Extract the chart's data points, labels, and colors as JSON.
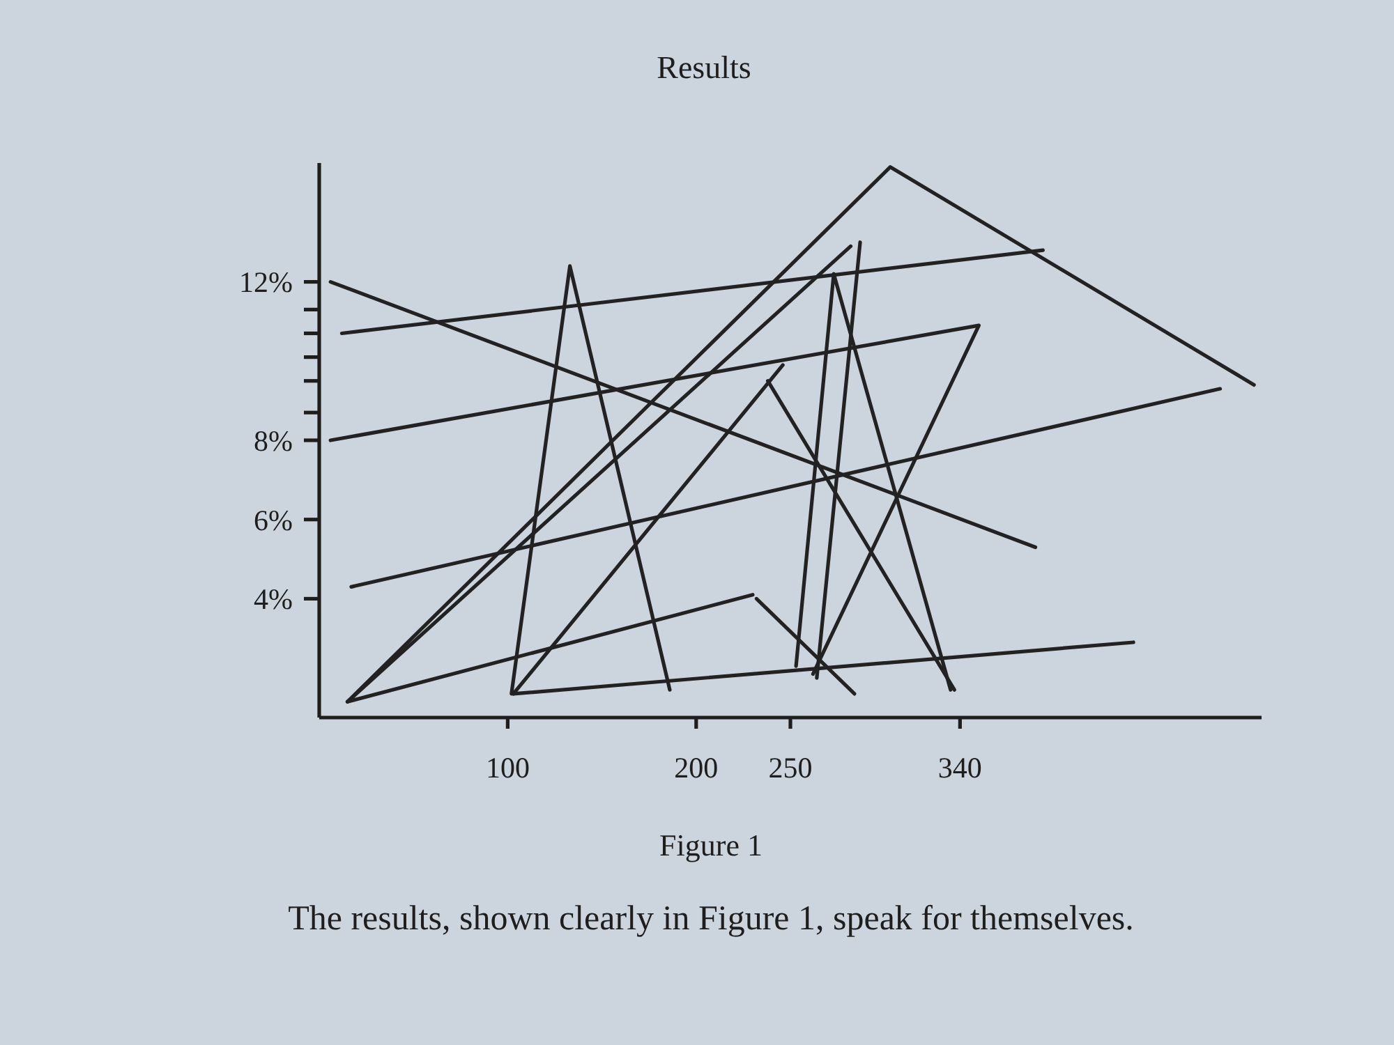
{
  "chart_data": {
    "type": "line",
    "title": "Results",
    "annotations": [
      "Figure 1",
      "The results, shown clearly in Figure 1, speak for themselves."
    ],
    "xlim": [
      0,
      500
    ],
    "xticks": [
      100,
      200,
      250,
      340
    ],
    "ylim": [
      1,
      15
    ],
    "yticks": [
      {
        "value": 4,
        "label": "4%"
      },
      {
        "value": 6,
        "label": "6%"
      },
      {
        "value": 8,
        "label": "8%"
      },
      {
        "value": 8.7,
        "label": null
      },
      {
        "value": 9.5,
        "label": null
      },
      {
        "value": 10.1,
        "label": null
      },
      {
        "value": 10.7,
        "label": null
      },
      {
        "value": 11.3,
        "label": null
      },
      {
        "value": 12,
        "label": "12%"
      }
    ],
    "marker": "none",
    "line_style": "solid",
    "series": [
      {
        "color": "#222222",
        "x": [
          6,
          380
        ],
        "values": [
          12,
          5.3
        ]
      },
      {
        "color": "#222222",
        "x": [
          12,
          384
        ],
        "values": [
          10.7,
          12.8
        ]
      },
      {
        "color": "#222222",
        "x": [
          6,
          350,
          262
        ],
        "values": [
          8,
          10.9,
          2.1
        ]
      },
      {
        "color": "#222222",
        "x": [
          17,
          478
        ],
        "values": [
          4.3,
          9.3
        ]
      },
      {
        "color": "#222222",
        "x": [
          103,
          432
        ],
        "values": [
          1.6,
          2.9
        ]
      },
      {
        "color": "#222222",
        "x": [
          15,
          230
        ],
        "values": [
          1.4,
          4.1
        ]
      },
      {
        "color": "#222222",
        "x": [
          15,
          303,
          496
        ],
        "values": [
          1.4,
          14.9,
          9.4
        ]
      },
      {
        "color": "#222222",
        "x": [
          15,
          282
        ],
        "values": [
          1.4,
          12.9
        ]
      },
      {
        "color": "#222222",
        "x": [
          102,
          133,
          186
        ],
        "values": [
          1.6,
          12.4,
          1.7
        ]
      },
      {
        "color": "#222222",
        "x": [
          103,
          246
        ],
        "values": [
          1.6,
          9.9
        ]
      },
      {
        "color": "#222222",
        "x": [
          238,
          337
        ],
        "values": [
          9.5,
          1.7
        ]
      },
      {
        "color": "#222222",
        "x": [
          253,
          273,
          335
        ],
        "values": [
          2.3,
          12.2,
          1.7
        ]
      },
      {
        "color": "#222222",
        "x": [
          264,
          287
        ],
        "values": [
          2.0,
          13.0
        ]
      },
      {
        "color": "#222222",
        "x": [
          232,
          284
        ],
        "values": [
          4.0,
          1.6
        ]
      }
    ]
  }
}
